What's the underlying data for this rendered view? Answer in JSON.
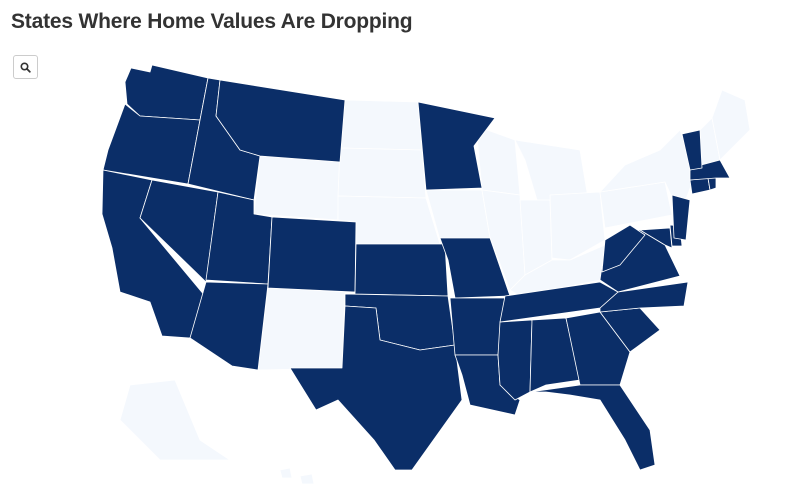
{
  "title": "States Where Home Values Are Dropping",
  "zoom_button": {
    "icon": "search-icon"
  },
  "colors": {
    "dropping": "#0b2e68",
    "not_dropping": "#f4f8fd",
    "border": "#ffffff",
    "title": "#333333"
  },
  "map_data": {
    "dropping_states": [
      "WA",
      "OR",
      "CA",
      "NV",
      "ID",
      "MT",
      "UT",
      "AZ",
      "CO",
      "KS",
      "OK",
      "TX",
      "MN",
      "MO",
      "AR",
      "LA",
      "MS",
      "AL",
      "GA",
      "FL",
      "SC",
      "NC",
      "TN",
      "VA",
      "WV",
      "MD",
      "DE",
      "NJ",
      "CT",
      "RI",
      "MA",
      "VT"
    ],
    "not_dropping_states": [
      "WY",
      "ND",
      "SD",
      "NE",
      "NM",
      "IA",
      "WI",
      "IL",
      "MI",
      "IN",
      "OH",
      "KY",
      "PA",
      "NY",
      "NH",
      "ME",
      "AK",
      "HI"
    ]
  }
}
